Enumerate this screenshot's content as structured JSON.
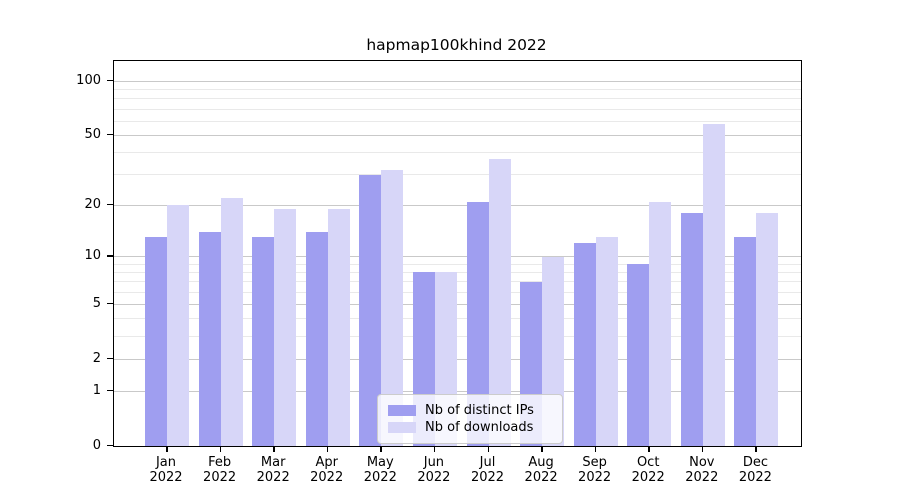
{
  "title": "hapmap100khind 2022",
  "chart_data": {
    "type": "bar",
    "categories": [
      {
        "month": "Jan",
        "year": "2022"
      },
      {
        "month": "Feb",
        "year": "2022"
      },
      {
        "month": "Mar",
        "year": "2022"
      },
      {
        "month": "Apr",
        "year": "2022"
      },
      {
        "month": "May",
        "year": "2022"
      },
      {
        "month": "Jun",
        "year": "2022"
      },
      {
        "month": "Jul",
        "year": "2022"
      },
      {
        "month": "Aug",
        "year": "2022"
      },
      {
        "month": "Sep",
        "year": "2022"
      },
      {
        "month": "Oct",
        "year": "2022"
      },
      {
        "month": "Nov",
        "year": "2022"
      },
      {
        "month": "Dec",
        "year": "2022"
      }
    ],
    "series": [
      {
        "name": "Nb of distinct IPs",
        "color": "#9f9ef0",
        "values": [
          13,
          14,
          13,
          14,
          30,
          8,
          21,
          7,
          12,
          9,
          18,
          13
        ]
      },
      {
        "name": "Nb of downloads",
        "color": "#d7d6f8",
        "values": [
          20,
          22,
          19,
          19,
          32,
          8,
          37,
          10,
          13,
          21,
          58,
          18
        ]
      }
    ],
    "title": "hapmap100khind 2022",
    "xlabel": "",
    "ylabel": "",
    "yscale": "log1p",
    "ylim": [
      0,
      128
    ],
    "y_major_ticks": [
      100,
      50,
      20,
      10,
      5,
      2,
      1,
      0
    ],
    "y_minor_gridlines": [
      90,
      80,
      70,
      60,
      50,
      40,
      30,
      9,
      8,
      7,
      6,
      4,
      3
    ],
    "grid": true,
    "legend_position": "bottom-center-inside"
  },
  "colors": {
    "major_grid": "#c9c9c9",
    "minor_grid": "#e9e9e9",
    "spine": "#000000",
    "background": "#ffffff"
  }
}
